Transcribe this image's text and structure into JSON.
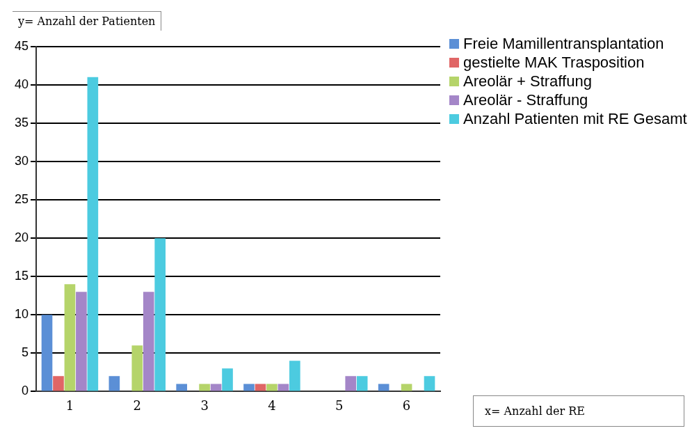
{
  "chart_data": {
    "type": "bar",
    "ylabel": "y= Anzahl der Patienten",
    "xlabel": "x= Anzahl der RE",
    "categories": [
      "1",
      "2",
      "3",
      "4",
      "5",
      "6"
    ],
    "series": [
      {
        "name": "Freie Mamillentransplantation",
        "color": "#5b8fd6",
        "values": [
          10,
          2,
          1,
          1,
          0,
          1
        ]
      },
      {
        "name": "gestielte MAK Trasposition",
        "color": "#e06666",
        "values": [
          2,
          0,
          0,
          1,
          0,
          0
        ]
      },
      {
        "name": "Areolär + Straffung",
        "color": "#b5d46a",
        "values": [
          14,
          6,
          1,
          1,
          0,
          1
        ]
      },
      {
        "name": "Areolär - Straffung",
        "color": "#a486c8",
        "values": [
          13,
          13,
          1,
          1,
          2,
          0
        ]
      },
      {
        "name": "Anzahl Patienten mit RE Gesamt",
        "color": "#4ccbe0",
        "values": [
          41,
          20,
          3,
          4,
          2,
          2
        ]
      }
    ],
    "ylim": [
      0,
      45
    ],
    "yticks": [
      0,
      5,
      10,
      15,
      20,
      25,
      30,
      35,
      40,
      45
    ],
    "grid": "y",
    "legend": "right"
  }
}
